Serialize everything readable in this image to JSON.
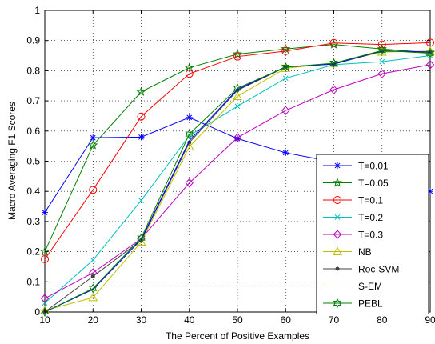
{
  "chart_data": {
    "type": "line",
    "title": "",
    "xlabel": "The Percent of Positive Examples",
    "ylabel": "Macro Averaging F1 Scores",
    "x": [
      10,
      20,
      30,
      40,
      50,
      60,
      70,
      80,
      90
    ],
    "xlim": [
      10,
      90
    ],
    "ylim": [
      0,
      1
    ],
    "xticks": [
      "10",
      "20",
      "30",
      "40",
      "50",
      "60",
      "70",
      "80",
      "90"
    ],
    "yticks": [
      "0",
      "0.1",
      "0.2",
      "0.3",
      "0.4",
      "0.5",
      "0.6",
      "0.7",
      "0.8",
      "0.9",
      "1"
    ],
    "grid": true,
    "legend_position": "bottom-right",
    "series": [
      {
        "name": "T=0.01",
        "color": "#0000ff",
        "marker": "asterisk",
        "values": [
          0.33,
          0.578,
          0.58,
          0.645,
          0.575,
          0.528,
          0.497,
          0.455,
          0.4
        ]
      },
      {
        "name": "T=0.05",
        "color": "#008000",
        "marker": "star",
        "values": [
          0.2,
          0.553,
          0.73,
          0.81,
          0.855,
          0.872,
          0.887,
          0.872,
          0.86
        ]
      },
      {
        "name": "T=0.1",
        "color": "#ff0000",
        "marker": "circle",
        "values": [
          0.175,
          0.405,
          0.648,
          0.79,
          0.847,
          0.865,
          0.892,
          0.887,
          0.893
        ]
      },
      {
        "name": "T=0.2",
        "color": "#00bfbf",
        "marker": "x",
        "values": [
          0.03,
          0.172,
          0.37,
          0.585,
          0.682,
          0.775,
          0.82,
          0.83,
          0.85
        ]
      },
      {
        "name": "T=0.3",
        "color": "#bf00bf",
        "marker": "diamond",
        "values": [
          0.045,
          0.13,
          0.243,
          0.428,
          0.578,
          0.668,
          0.737,
          0.79,
          0.82
        ]
      },
      {
        "name": "NB",
        "color": "#bfbf00",
        "marker": "triangle",
        "values": [
          0.005,
          0.048,
          0.232,
          0.548,
          0.715,
          0.808,
          0.825,
          0.862,
          0.865
        ]
      },
      {
        "name": "Roc-SVM",
        "color": "#404040",
        "marker": "dot",
        "values": [
          0.0,
          0.118,
          0.238,
          0.562,
          0.735,
          0.812,
          0.822,
          0.865,
          0.862
        ]
      },
      {
        "name": "S-EM",
        "color": "#0000ff",
        "marker": "none",
        "values": [
          0.0,
          0.075,
          0.24,
          0.568,
          0.738,
          0.813,
          0.822,
          0.866,
          0.862
        ]
      },
      {
        "name": "PEBL",
        "color": "#008000",
        "marker": "hexagram",
        "values": [
          0.0,
          0.078,
          0.245,
          0.59,
          0.742,
          0.812,
          0.825,
          0.867,
          0.858
        ]
      }
    ]
  }
}
